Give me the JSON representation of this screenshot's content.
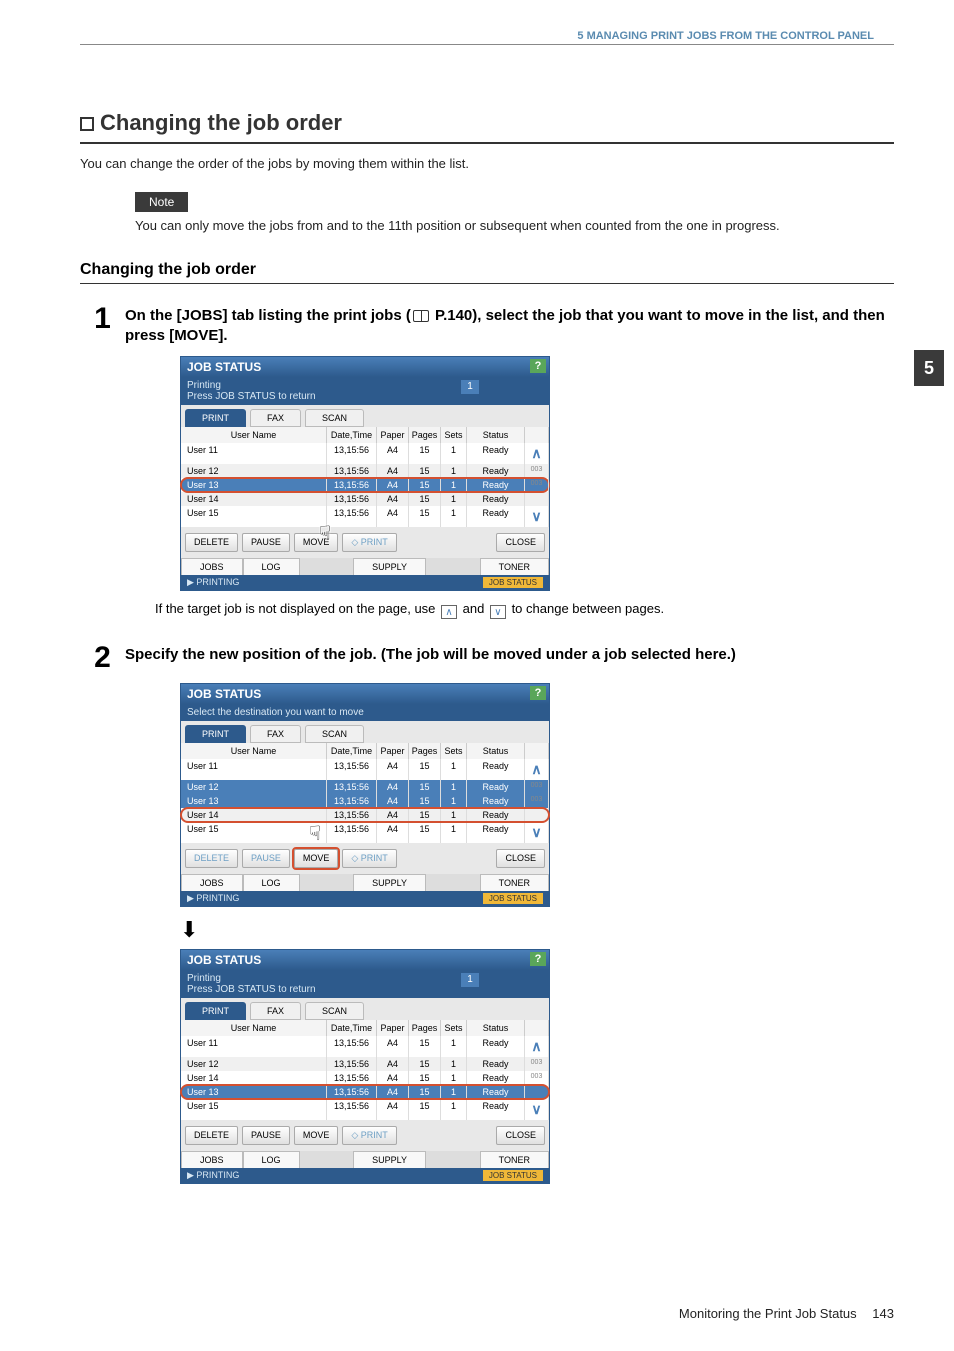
{
  "header": {
    "chapter": "5 MANAGING PRINT JOBS FROM THE CONTROL PANEL",
    "side_tab": "5"
  },
  "section": {
    "title": "Changing the job order",
    "intro": "You can change the order of the jobs by moving them within the list.",
    "note_label": "Note",
    "note_text": "You can only move the jobs from and to the 11th position or subsequent when counted from the one in progress.",
    "sub_heading": "Changing the job order"
  },
  "step1": {
    "num": "1",
    "text_before": "On the [JOBS] tab listing the print jobs (",
    "text_page_ref": " P.140), select the job that you want to move in the list, and then press [MOVE].",
    "caption_before": "If the target job is not displayed on the page, use ",
    "caption_mid": " and ",
    "caption_after": " to change between pages."
  },
  "step2": {
    "num": "2",
    "text": "Specify the new position of the job. (The job will be moved under a job selected here.)"
  },
  "panel_common": {
    "title": "JOB STATUS",
    "help": "?",
    "tabs": [
      "PRINT",
      "FAX",
      "SCAN"
    ],
    "columns": [
      "User Name",
      "Date,Time",
      "Paper",
      "Pages",
      "Sets",
      "Status"
    ],
    "btns": {
      "delete": "DELETE",
      "pause": "PAUSE",
      "move": "MOVE",
      "print": "PRINT",
      "close": "CLOSE"
    },
    "bottom_tabs": [
      "JOBS",
      "LOG",
      "SUPPLY",
      "TONER"
    ],
    "status_left": "PRINTING",
    "status_right": "JOB STATUS",
    "page_indicator": "1",
    "scroll_pages": "003\n003"
  },
  "panel1": {
    "sub1": "Printing",
    "sub2": "Press JOB STATUS to return",
    "rows": [
      {
        "u": "User 11",
        "dt": "13,15:56",
        "p": "A4",
        "pg": "15",
        "s": "1",
        "st": "Ready",
        "hl": false,
        "ol": false
      },
      {
        "u": "User 12",
        "dt": "13,15:56",
        "p": "A4",
        "pg": "15",
        "s": "1",
        "st": "Ready",
        "hl": false,
        "ol": false
      },
      {
        "u": "User 13",
        "dt": "13,15:56",
        "p": "A4",
        "pg": "15",
        "s": "1",
        "st": "Ready",
        "hl": true,
        "ol": true
      },
      {
        "u": "User 14",
        "dt": "13,15:56",
        "p": "A4",
        "pg": "15",
        "s": "1",
        "st": "Ready",
        "hl": false,
        "ol": false
      },
      {
        "u": "User 15",
        "dt": "13,15:56",
        "p": "A4",
        "pg": "15",
        "s": "1",
        "st": "Ready",
        "hl": false,
        "ol": false
      }
    ]
  },
  "panel2": {
    "sub": "Select the destination you want to move",
    "rows": [
      {
        "u": "User 11",
        "dt": "13,15:56",
        "p": "A4",
        "pg": "15",
        "s": "1",
        "st": "Ready",
        "hl": false,
        "ol": false
      },
      {
        "u": "User 12",
        "dt": "13,15:56",
        "p": "A4",
        "pg": "15",
        "s": "1",
        "st": "Ready",
        "hl": true,
        "ol": false
      },
      {
        "u": "User 13",
        "dt": "13,15:56",
        "p": "A4",
        "pg": "15",
        "s": "1",
        "st": "Ready",
        "hl": true,
        "ol": false
      },
      {
        "u": "User 14",
        "dt": "13,15:56",
        "p": "A4",
        "pg": "15",
        "s": "1",
        "st": "Ready",
        "hl": false,
        "ol": true
      },
      {
        "u": "User 15",
        "dt": "13,15:56",
        "p": "A4",
        "pg": "15",
        "s": "1",
        "st": "Ready",
        "hl": false,
        "ol": false
      }
    ]
  },
  "panel3": {
    "sub1": "Printing",
    "sub2": "Press JOB STATUS to return",
    "rows": [
      {
        "u": "User 11",
        "dt": "13,15:56",
        "p": "A4",
        "pg": "15",
        "s": "1",
        "st": "Ready",
        "hl": false,
        "ol": false
      },
      {
        "u": "User 12",
        "dt": "13,15:56",
        "p": "A4",
        "pg": "15",
        "s": "1",
        "st": "Ready",
        "hl": false,
        "ol": false
      },
      {
        "u": "User 14",
        "dt": "13,15:56",
        "p": "A4",
        "pg": "15",
        "s": "1",
        "st": "Ready",
        "hl": false,
        "ol": false
      },
      {
        "u": "User 13",
        "dt": "13,15:56",
        "p": "A4",
        "pg": "15",
        "s": "1",
        "st": "Ready",
        "hl": true,
        "ol": true
      },
      {
        "u": "User 15",
        "dt": "13,15:56",
        "p": "A4",
        "pg": "15",
        "s": "1",
        "st": "Ready",
        "hl": false,
        "ol": false
      }
    ]
  },
  "footer": {
    "text": "Monitoring the Print Job Status",
    "page": "143"
  },
  "colors": {
    "header_blue": "#5a8bb0",
    "panel_blue": "#2d5a8c",
    "highlight_orange": "#d45030",
    "accent_green": "#5aa65a",
    "job_status_orange": "#f0b838"
  }
}
